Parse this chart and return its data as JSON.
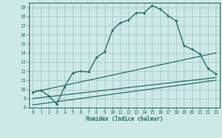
{
  "xlabel": "Humidex (Indice chaleur)",
  "xlim": [
    -0.5,
    23.5
  ],
  "ylim": [
    8,
    19.5
  ],
  "xticks": [
    0,
    1,
    2,
    3,
    4,
    5,
    6,
    7,
    8,
    9,
    10,
    11,
    12,
    13,
    14,
    15,
    16,
    17,
    18,
    19,
    20,
    21,
    22,
    23
  ],
  "yticks": [
    8,
    9,
    10,
    11,
    12,
    13,
    14,
    15,
    16,
    17,
    18,
    19
  ],
  "bg_color": "#cde8e5",
  "grid_color": "#a8ccc9",
  "line_color": "#1a6b5e",
  "line1_x": [
    0,
    1,
    2,
    3,
    4,
    5,
    6,
    7,
    8,
    9,
    10,
    11,
    12,
    13,
    14,
    15,
    16,
    17,
    18,
    19,
    20,
    21,
    22,
    23
  ],
  "line1_y": [
    9.7,
    9.9,
    9.3,
    8.4,
    10.3,
    11.8,
    12.0,
    11.9,
    13.5,
    14.1,
    16.5,
    17.3,
    17.6,
    18.4,
    18.4,
    19.2,
    18.8,
    18.1,
    17.5,
    14.8,
    14.4,
    13.9,
    12.3,
    11.7
  ],
  "line2_x": [
    0,
    23
  ],
  "line2_y": [
    9.7,
    14.0
  ],
  "line3_x": [
    0,
    23
  ],
  "line3_y": [
    9.0,
    11.3
  ],
  "line4_x": [
    0,
    23
  ],
  "line4_y": [
    8.3,
    11.0
  ]
}
